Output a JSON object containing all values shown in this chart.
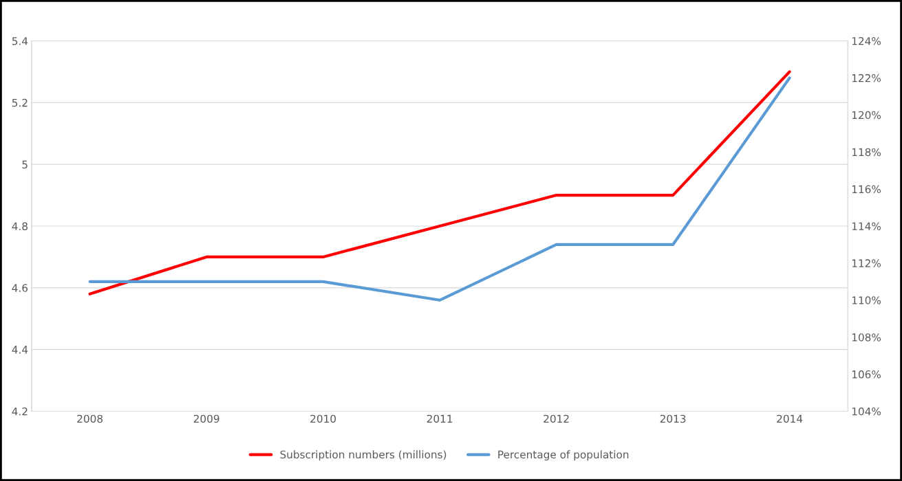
{
  "chart_data": {
    "type": "line",
    "categories": [
      "2008",
      "2009",
      "2010",
      "2011",
      "2012",
      "2013",
      "2014"
    ],
    "series": [
      {
        "name": "Subscription numbers (millions)",
        "color": "#ff0000",
        "values": [
          4.58,
          4.7,
          4.7,
          4.8,
          4.9,
          4.9,
          5.3
        ]
      },
      {
        "name": "Percentage of population",
        "color": "#5b9bd5",
        "axis": "y2",
        "values": [
          111,
          111,
          111,
          110,
          113,
          113,
          122
        ]
      }
    ],
    "ylim": [
      4.2,
      5.4
    ],
    "yticks": [
      4.2,
      4.4,
      4.6,
      4.8,
      5,
      5.2,
      5.4
    ],
    "y2lim": [
      104,
      124
    ],
    "y2ticks": [
      {
        "value": 104,
        "label": "104%"
      },
      {
        "value": 106,
        "label": "106%"
      },
      {
        "value": 108,
        "label": "108%"
      },
      {
        "value": 110,
        "label": "110%"
      },
      {
        "value": 112,
        "label": "112%"
      },
      {
        "value": 114,
        "label": "114%"
      },
      {
        "value": 116,
        "label": "116%"
      },
      {
        "value": 118,
        "label": "118%"
      },
      {
        "value": 120,
        "label": "120%"
      },
      {
        "value": 122,
        "label": "122%"
      },
      {
        "value": 124,
        "label": "124%"
      }
    ],
    "grid": "y",
    "legend": "bottom",
    "marker": "none",
    "line_style": "solid"
  }
}
